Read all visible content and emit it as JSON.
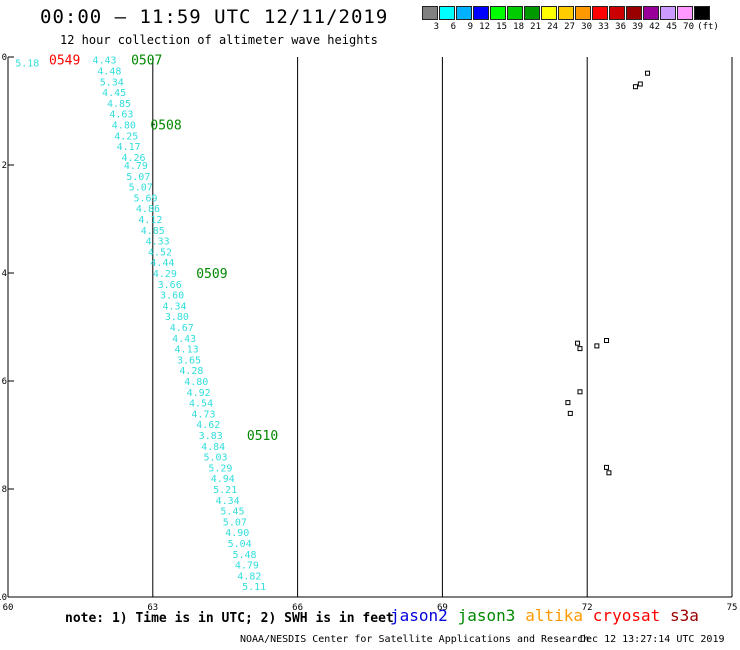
{
  "header": {
    "title": "00:00 – 11:59 UTC 12/11/2019",
    "subtitle": "12 hour collection of altimeter wave heights"
  },
  "legend": {
    "colors": [
      "#808080",
      "#00ffff",
      "#00b2ff",
      "#0000ff",
      "#00ff00",
      "#00cc00",
      "#009900",
      "#ffff00",
      "#ffcc00",
      "#ff9900",
      "#ff0000",
      "#cc0000",
      "#990000",
      "#990099",
      "#cc99ff",
      "#ff99ff",
      "#000000"
    ],
    "labels": [
      "3",
      "6",
      "9",
      "12",
      "15",
      "18",
      "21",
      "24",
      "27",
      "30",
      "33",
      "36",
      "39",
      "42",
      "45",
      "70",
      "(ft)"
    ]
  },
  "chart_data": {
    "type": "scatter",
    "xlim": [
      60,
      75
    ],
    "ylim": [
      -10,
      0
    ],
    "x_ticks": [
      "60",
      "63",
      "66",
      "69",
      "72",
      "75"
    ],
    "y_ticks": [
      "0",
      "-2",
      "-4",
      "-6",
      "-8",
      "-10"
    ],
    "track_color": "#33dddd",
    "track": [
      {
        "x": 60.4,
        "y": -0.1,
        "v": "5.18"
      },
      {
        "x": 62.0,
        "y": -0.05,
        "v": "4.43"
      },
      {
        "x": 62.1,
        "y": -0.25,
        "v": "4.48"
      },
      {
        "x": 62.15,
        "y": -0.45,
        "v": "5.34"
      },
      {
        "x": 62.2,
        "y": -0.65,
        "v": "4.45"
      },
      {
        "x": 62.3,
        "y": -0.85,
        "v": "4.85"
      },
      {
        "x": 62.35,
        "y": -1.05,
        "v": "4.63"
      },
      {
        "x": 62.4,
        "y": -1.25,
        "v": "4.80"
      },
      {
        "x": 62.45,
        "y": -1.45,
        "v": "4.25"
      },
      {
        "x": 62.5,
        "y": -1.65,
        "v": "4.17"
      },
      {
        "x": 62.6,
        "y": -1.85,
        "v": "4.26"
      },
      {
        "x": 62.65,
        "y": -2.0,
        "v": "4.79"
      },
      {
        "x": 62.7,
        "y": -2.2,
        "v": "5.07"
      },
      {
        "x": 62.75,
        "y": -2.4,
        "v": "5.07"
      },
      {
        "x": 62.85,
        "y": -2.6,
        "v": "5.69"
      },
      {
        "x": 62.9,
        "y": -2.8,
        "v": "4.86"
      },
      {
        "x": 62.95,
        "y": -3.0,
        "v": "4.12"
      },
      {
        "x": 63.0,
        "y": -3.2,
        "v": "4.85"
      },
      {
        "x": 63.1,
        "y": -3.4,
        "v": "4.33"
      },
      {
        "x": 63.15,
        "y": -3.6,
        "v": "4.52"
      },
      {
        "x": 63.2,
        "y": -3.8,
        "v": "4.44"
      },
      {
        "x": 63.25,
        "y": -4.0,
        "v": "4.29"
      },
      {
        "x": 63.35,
        "y": -4.2,
        "v": "3.66"
      },
      {
        "x": 63.4,
        "y": -4.4,
        "v": "3.60"
      },
      {
        "x": 63.45,
        "y": -4.6,
        "v": "4.34"
      },
      {
        "x": 63.5,
        "y": -4.8,
        "v": "3.80"
      },
      {
        "x": 63.6,
        "y": -5.0,
        "v": "4.67"
      },
      {
        "x": 63.65,
        "y": -5.2,
        "v": "4.43"
      },
      {
        "x": 63.7,
        "y": -5.4,
        "v": "4.13"
      },
      {
        "x": 63.75,
        "y": -5.6,
        "v": "3.65"
      },
      {
        "x": 63.8,
        "y": -5.8,
        "v": "4.28"
      },
      {
        "x": 63.9,
        "y": -6.0,
        "v": "4.80"
      },
      {
        "x": 63.95,
        "y": -6.2,
        "v": "4.92"
      },
      {
        "x": 64.0,
        "y": -6.4,
        "v": "4.54"
      },
      {
        "x": 64.05,
        "y": -6.6,
        "v": "4.73"
      },
      {
        "x": 64.15,
        "y": -6.8,
        "v": "4.62"
      },
      {
        "x": 64.2,
        "y": -7.0,
        "v": "3.83"
      },
      {
        "x": 64.25,
        "y": -7.2,
        "v": "4.84"
      },
      {
        "x": 64.3,
        "y": -7.4,
        "v": "5.03"
      },
      {
        "x": 64.4,
        "y": -7.6,
        "v": "5.29"
      },
      {
        "x": 64.45,
        "y": -7.8,
        "v": "4.94"
      },
      {
        "x": 64.5,
        "y": -8.0,
        "v": "5.21"
      },
      {
        "x": 64.55,
        "y": -8.2,
        "v": "4.34"
      },
      {
        "x": 64.65,
        "y": -8.4,
        "v": "5.45"
      },
      {
        "x": 64.7,
        "y": -8.6,
        "v": "5.07"
      },
      {
        "x": 64.75,
        "y": -8.8,
        "v": "4.90"
      },
      {
        "x": 64.8,
        "y": -9.0,
        "v": "5.04"
      },
      {
        "x": 64.9,
        "y": -9.2,
        "v": "5.48"
      },
      {
        "x": 64.95,
        "y": -9.4,
        "v": "4.79"
      },
      {
        "x": 65.0,
        "y": -9.6,
        "v": "4.82"
      },
      {
        "x": 65.1,
        "y": -9.8,
        "v": "5.11"
      }
    ],
    "time_labels": [
      {
        "x": 60.85,
        "y": -0.05,
        "t": "0549",
        "color": "#ff0000"
      },
      {
        "x": 62.55,
        "y": -0.05,
        "t": "0507",
        "color": "#008800"
      },
      {
        "x": 62.95,
        "y": -1.25,
        "t": "0508",
        "color": "#008800"
      },
      {
        "x": 63.9,
        "y": -4.0,
        "t": "0509",
        "color": "#008800"
      },
      {
        "x": 64.95,
        "y": -7.0,
        "t": "0510",
        "color": "#008800"
      }
    ],
    "islands": [
      {
        "x": 73.25,
        "y": -0.3
      },
      {
        "x": 73.1,
        "y": -0.5
      },
      {
        "x": 73.0,
        "y": -0.55
      },
      {
        "x": 71.8,
        "y": -5.3
      },
      {
        "x": 71.85,
        "y": -5.4
      },
      {
        "x": 72.2,
        "y": -5.35
      },
      {
        "x": 72.4,
        "y": -5.25
      },
      {
        "x": 71.6,
        "y": -6.4
      },
      {
        "x": 71.65,
        "y": -6.6
      },
      {
        "x": 71.85,
        "y": -6.2
      },
      {
        "x": 72.4,
        "y": -7.6
      },
      {
        "x": 72.45,
        "y": -7.7
      }
    ]
  },
  "footer": {
    "note": "note: 1) Time is in UTC; 2) SWH is in feet",
    "satellites": [
      {
        "name": "jason2",
        "color": "#0000dd"
      },
      {
        "name": "jason3",
        "color": "#008800"
      },
      {
        "name": "altika",
        "color": "#ff9900"
      },
      {
        "name": "cryosat",
        "color": "#ff0000"
      },
      {
        "name": "s3a",
        "color": "#990000"
      }
    ],
    "credit": "NOAA/NESDIS Center for Satellite Applications and Research",
    "timestamp": "Dec 12 13:27:14 UTC 2019"
  }
}
